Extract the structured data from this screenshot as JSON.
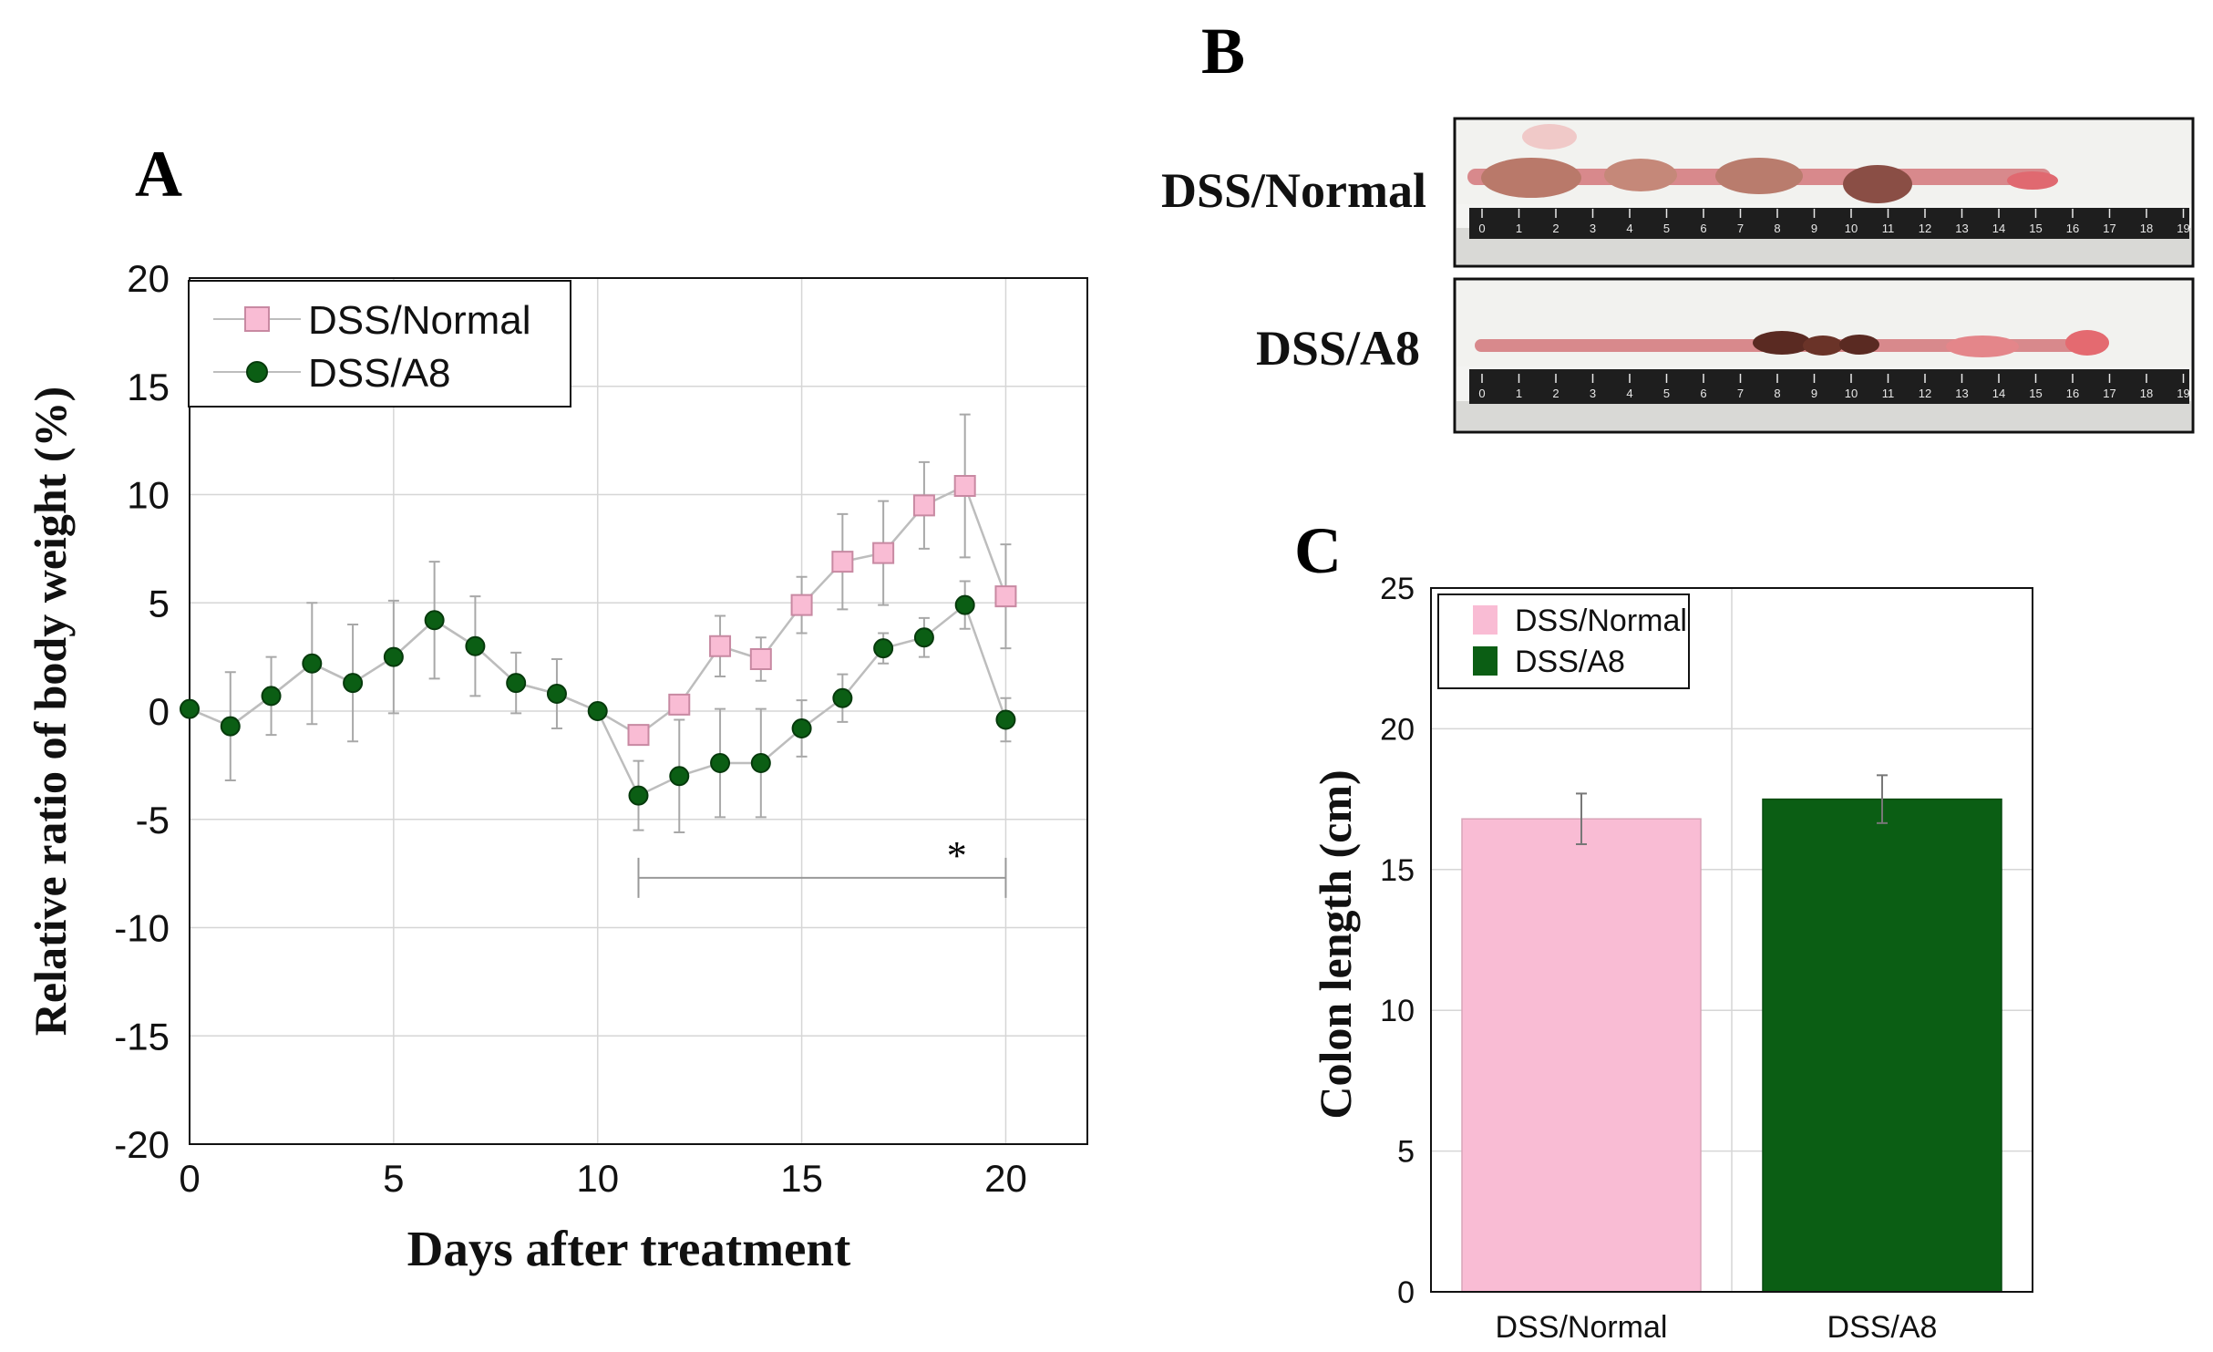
{
  "panels": {
    "A": "A",
    "B": "B",
    "C": "C"
  },
  "colors": {
    "normal": "#f9bcd4",
    "normal_edge": "#c889a2",
    "a8": "#0b5e14",
    "a8_edge": "#063a0c",
    "line": "#bdbdbd",
    "grid": "#d6d6d6",
    "err": "#a8a8a8",
    "tissue": "#d8898c",
    "tissue_dark": "#5a2a22",
    "ruler": "#1e1e1e"
  },
  "photo": {
    "rows": [
      {
        "label": "DSS/Normal"
      },
      {
        "label": "DSS/A8"
      }
    ],
    "ruler_numbers": [
      "0",
      "1",
      "2",
      "3",
      "4",
      "5",
      "6",
      "7",
      "8",
      "9",
      "10",
      "11",
      "12",
      "13",
      "14",
      "15",
      "16",
      "17",
      "18",
      "19"
    ]
  },
  "significance": "*",
  "chart_data": [
    {
      "type": "line",
      "panel": "A",
      "title": "",
      "xlabel": "Days after treatment",
      "ylabel": "Relative ratio of body weight (%)",
      "xlim": [
        0,
        22
      ],
      "ylim": [
        -20,
        20
      ],
      "xticks": [
        0,
        5,
        10,
        15,
        20
      ],
      "yticks": [
        20,
        15,
        10,
        5,
        0,
        -5,
        -10,
        -15,
        -20
      ],
      "grid": true,
      "legend_position": "top-left",
      "x": [
        0,
        1,
        2,
        3,
        4,
        5,
        6,
        7,
        8,
        9,
        10,
        11,
        12,
        13,
        14,
        15,
        16,
        17,
        18,
        19,
        20
      ],
      "series": [
        {
          "name": "DSS/Normal",
          "marker": "square",
          "values": [
            0.1,
            -0.7,
            0.7,
            2.2,
            1.3,
            2.5,
            4.2,
            3.0,
            1.3,
            0.8,
            0,
            -1.1,
            0.3,
            3.0,
            2.4,
            4.9,
            6.9,
            7.3,
            9.5,
            10.4,
            5.3
          ],
          "errors": [
            0,
            0,
            0,
            0,
            0,
            0,
            0,
            0,
            0,
            0,
            0,
            0,
            0,
            1.4,
            1.0,
            1.3,
            2.2,
            2.4,
            2.0,
            3.3,
            2.4
          ]
        },
        {
          "name": "DSS/A8",
          "marker": "circle",
          "values": [
            0.1,
            -0.7,
            0.7,
            2.2,
            1.3,
            2.5,
            4.2,
            3.0,
            1.3,
            0.8,
            0,
            -3.9,
            -3.0,
            -2.4,
            -2.4,
            -0.8,
            0.6,
            2.9,
            3.4,
            4.9,
            -0.4
          ],
          "errors": [
            0,
            2.5,
            1.8,
            2.8,
            2.7,
            2.6,
            2.7,
            2.3,
            1.4,
            1.6,
            0,
            1.6,
            2.6,
            2.5,
            2.5,
            1.3,
            1.1,
            0.7,
            0.9,
            1.1,
            1.0
          ]
        }
      ],
      "significance_bracket": {
        "x_start": 11,
        "x_end": 20,
        "y": -7.7,
        "label": "*"
      }
    },
    {
      "type": "bar",
      "panel": "C",
      "title": "",
      "xlabel": "",
      "ylabel": "Colon length (cm)",
      "ylim": [
        0,
        25
      ],
      "yticks": [
        25,
        20,
        15,
        10,
        5,
        0
      ],
      "grid": true,
      "legend_position": "top-left",
      "categories": [
        "DSS/Normal",
        "DSS/A8"
      ],
      "values": [
        16.8,
        17.5
      ],
      "errors": [
        0.9,
        0.85
      ]
    }
  ]
}
